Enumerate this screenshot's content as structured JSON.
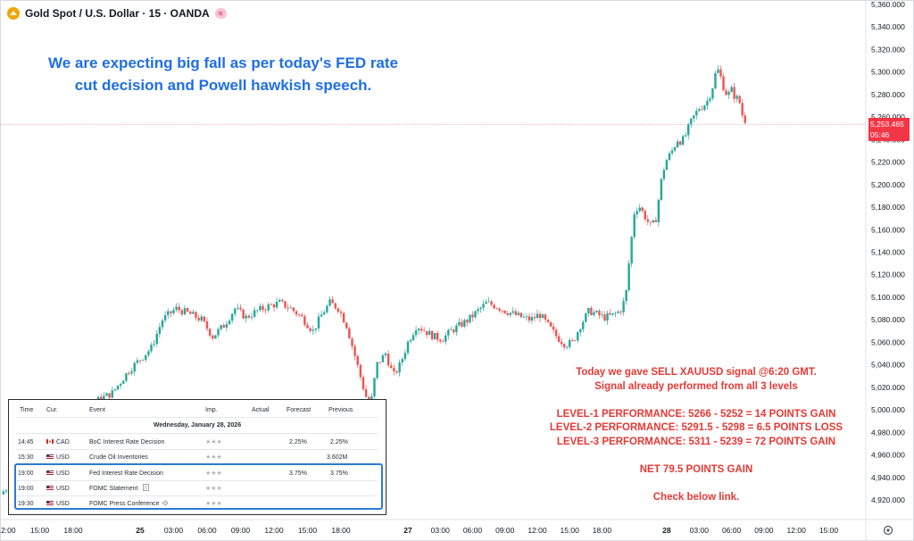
{
  "header": {
    "title": "Gold Spot / U.S. Dollar · 15 · OANDA",
    "badge": "≈"
  },
  "headline": {
    "line1": "We are expecting big fall as per today's FED rate",
    "line2": "cut decision and Powell hawkish speech."
  },
  "signal": {
    "lines": [
      "Today we gave SELL XAUUSD signal @6:20 GMT.",
      "Signal already performed from all 3 levels",
      "",
      "LEVEL-1 PERFORMANCE:  5266 - 5252 = 14 POINTS GAIN",
      "LEVEL-2 PERFORMANCE: 5291.5 - 5298 = 6.5 POINTS LOSS",
      "LEVEL-3 PERFORMANCE: 5311 - 5239 = 72 POINTS GAIN",
      "",
      "NET 79.5 POINTS GAIN",
      "",
      "Check below link."
    ]
  },
  "price_tag": {
    "price": "5,253.465",
    "countdown": "05:46"
  },
  "calendar": {
    "headers": {
      "time": "Time",
      "currency": "Cur.",
      "event": "Event",
      "importance": "Imp.",
      "actual": "Actual",
      "forecast": "Forecast",
      "previous": "Previous"
    },
    "date": "Wednesday, January 28, 2026",
    "rows": [
      {
        "time": "14:45",
        "flag": "CA",
        "currency": "CAD",
        "event": "BoC Interest Rate Decision",
        "stars": "★★★",
        "actual": "",
        "forecast": "2.25%",
        "previous": "2.25%"
      },
      {
        "time": "15:30",
        "flag": "US",
        "currency": "USD",
        "event": "Crude Oil Inventories",
        "stars": "★★★",
        "actual": "",
        "forecast": "",
        "previous": "3.602M"
      },
      {
        "time": "19:00",
        "flag": "US",
        "currency": "USD",
        "event": "Fed Interest Rate Decision",
        "stars": "★★★",
        "actual": "",
        "forecast": "3.75%",
        "previous": "3.75%"
      },
      {
        "time": "19:00",
        "flag": "US",
        "currency": "USD",
        "event": "FOMC Statement",
        "stars": "★★★",
        "actual": "",
        "forecast": "",
        "previous": ""
      },
      {
        "time": "19:30",
        "flag": "US",
        "currency": "USD",
        "event": "FOMC Press Conference",
        "stars": "★★★",
        "actual": "",
        "forecast": "",
        "previous": ""
      }
    ]
  },
  "colors": {
    "up": "#26a69a",
    "down": "#ef5350",
    "headline": "#1e6ee6",
    "signal": "#e53935",
    "price_tag": "#f23645",
    "highlight": "#2b7bd3"
  },
  "chart_data": {
    "type": "candlestick",
    "symbol": "XAUUSD",
    "timeframe": "15",
    "ylim": [
      4900,
      5360
    ],
    "y_ticks": [
      "5,360.000",
      "5,340.000",
      "5,320.000",
      "5,300.000",
      "5,280.000",
      "5,260.000",
      "5,240.000",
      "5,220.000",
      "5,200.000",
      "5,180.000",
      "5,160.000",
      "5,140.000",
      "5,120.000",
      "5,100.000",
      "5,080.000",
      "5,060.000",
      "5,040.000",
      "5,020.000",
      "5,000.000",
      "4,980.000",
      "4,960.000",
      "4,940.000",
      "4,920.000"
    ],
    "x_ticks": [
      "12:00",
      "15:00",
      "18:00",
      "25",
      "03:00",
      "06:00",
      "09:00",
      "12:00",
      "15:00",
      "18:00",
      "27",
      "03:00",
      "06:00",
      "09:00",
      "12:00",
      "15:00",
      "18:00",
      "28",
      "03:00",
      "06:00",
      "09:00",
      "12:00",
      "15:00"
    ],
    "x_tick_hours": [
      -12,
      -9,
      -6,
      0,
      3,
      6,
      9,
      12,
      15,
      18,
      24,
      27,
      30,
      33,
      36,
      39,
      42,
      48,
      51,
      54,
      57,
      60,
      63
    ],
    "last_price": 5253.465,
    "close_path": [
      [
        -12.5,
        4925
      ],
      [
        -10,
        4950
      ],
      [
        -7,
        4975
      ],
      [
        -4.5,
        5005
      ],
      [
        -2.5,
        5015
      ],
      [
        -1,
        5035
      ],
      [
        0,
        5045
      ],
      [
        1,
        5055
      ],
      [
        2,
        5080
      ],
      [
        3.2,
        5090
      ],
      [
        4.5,
        5085
      ],
      [
        5.5,
        5080
      ],
      [
        6.5,
        5065
      ],
      [
        7.5,
        5075
      ],
      [
        8.5,
        5090
      ],
      [
        9.5,
        5082
      ],
      [
        10.5,
        5088
      ],
      [
        11.5,
        5092
      ],
      [
        12.5,
        5095
      ],
      [
        13.5,
        5090
      ],
      [
        14.5,
        5082
      ],
      [
        15.5,
        5070
      ],
      [
        16.3,
        5085
      ],
      [
        17,
        5095
      ],
      [
        17.8,
        5090
      ],
      [
        18.5,
        5075
      ],
      [
        19.2,
        5050
      ],
      [
        20,
        5020
      ],
      [
        20.6,
        5000
      ],
      [
        21.2,
        5040
      ],
      [
        22,
        5050
      ],
      [
        22.7,
        5030
      ],
      [
        23.3,
        5040
      ],
      [
        24,
        5060
      ],
      [
        24.8,
        5075
      ],
      [
        25.6,
        5070
      ],
      [
        26.4,
        5065
      ],
      [
        27.2,
        5063
      ],
      [
        28,
        5070
      ],
      [
        28.8,
        5075
      ],
      [
        29.6,
        5080
      ],
      [
        30.5,
        5088
      ],
      [
        31.3,
        5095
      ],
      [
        32.2,
        5092
      ],
      [
        33,
        5088
      ],
      [
        33.8,
        5085
      ],
      [
        34.6,
        5082
      ],
      [
        35.4,
        5080
      ],
      [
        36.2,
        5085
      ],
      [
        37,
        5075
      ],
      [
        37.8,
        5065
      ],
      [
        38.6,
        5058
      ],
      [
        39.3,
        5060
      ],
      [
        40,
        5075
      ],
      [
        40.8,
        5088
      ],
      [
        41.5,
        5085
      ],
      [
        42.2,
        5082
      ],
      [
        43,
        5084
      ],
      [
        43.7,
        5088
      ],
      [
        44.2,
        5100
      ],
      [
        44.6,
        5140
      ],
      [
        45,
        5175
      ],
      [
        45.4,
        5182
      ],
      [
        45.8,
        5175
      ],
      [
        46.2,
        5168
      ],
      [
        46.6,
        5162
      ],
      [
        47,
        5170
      ],
      [
        47.3,
        5190
      ],
      [
        47.6,
        5210
      ],
      [
        48,
        5222
      ],
      [
        48.5,
        5230
      ],
      [
        49,
        5240
      ],
      [
        49.4,
        5238
      ],
      [
        49.8,
        5245
      ],
      [
        50.2,
        5255
      ],
      [
        50.6,
        5262
      ],
      [
        51,
        5268
      ],
      [
        51.4,
        5270
      ],
      [
        51.8,
        5275
      ],
      [
        52.2,
        5285
      ],
      [
        52.5,
        5298
      ],
      [
        52.8,
        5302
      ],
      [
        53.1,
        5292
      ],
      [
        53.4,
        5282
      ],
      [
        53.7,
        5280
      ],
      [
        54,
        5284
      ],
      [
        54.3,
        5278
      ],
      [
        54.7,
        5275
      ],
      [
        55,
        5262
      ],
      [
        55.3,
        5253.465
      ]
    ]
  }
}
